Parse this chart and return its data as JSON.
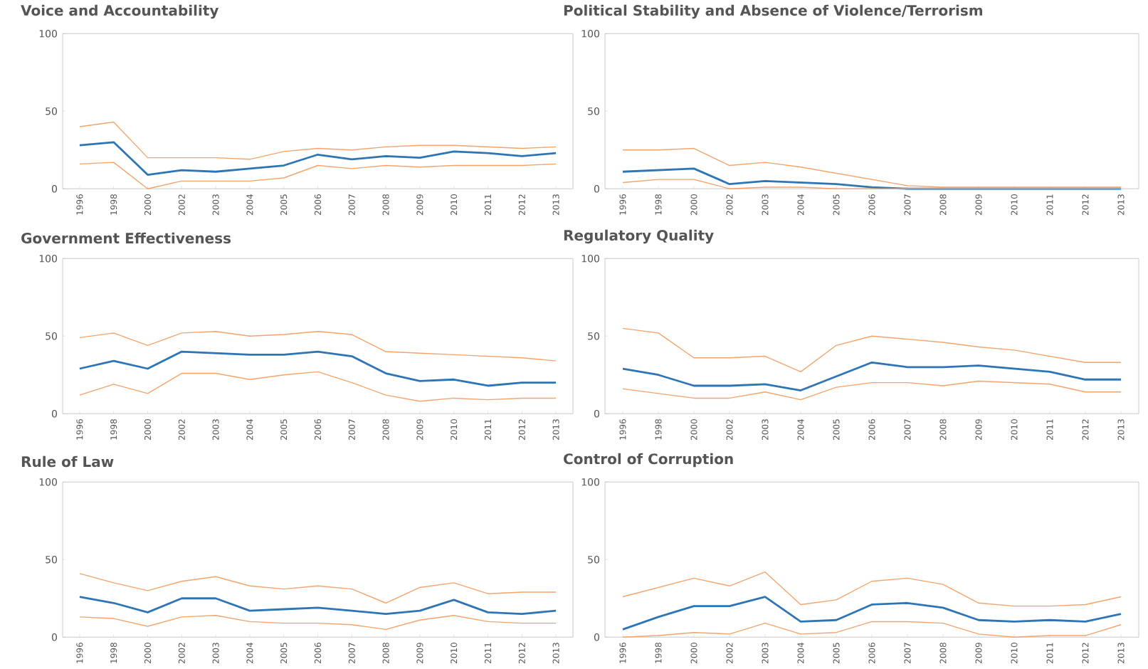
{
  "chart_data": [
    {
      "type": "line",
      "title": "Voice and Accountability",
      "categories": [
        "1996",
        "1998",
        "2000",
        "2002",
        "2003",
        "2004",
        "2005",
        "2006",
        "2007",
        "2008",
        "2009",
        "2010",
        "2011",
        "2012",
        "2013"
      ],
      "ylim": [
        0,
        100
      ],
      "yticks": [
        0,
        50,
        100
      ],
      "series": [
        {
          "color": "#2e75b6",
          "values": [
            28,
            30,
            9,
            12,
            11,
            13,
            15,
            22,
            19,
            21,
            20,
            24,
            23,
            21,
            23
          ]
        },
        {
          "color": "#f4a46a",
          "values": [
            40,
            43,
            20,
            20,
            20,
            19,
            24,
            26,
            25,
            27,
            28,
            28,
            27,
            26,
            27
          ]
        },
        {
          "color": "#f4a46a",
          "values": [
            16,
            17,
            0,
            5,
            5,
            5,
            7,
            15,
            13,
            15,
            14,
            15,
            15,
            15,
            16
          ]
        }
      ]
    },
    {
      "type": "line",
      "title": "Political Stability and Absence of Violence/Terrorism",
      "categories": [
        "1996",
        "1998",
        "2000",
        "2002",
        "2003",
        "2004",
        "2005",
        "2006",
        "2007",
        "2008",
        "2009",
        "2010",
        "2011",
        "2012",
        "2013"
      ],
      "ylim": [
        0,
        100
      ],
      "yticks": [
        0,
        50,
        100
      ],
      "series": [
        {
          "color": "#2e75b6",
          "values": [
            11,
            12,
            13,
            3,
            5,
            4,
            3,
            1,
            0,
            0,
            0,
            0,
            0,
            0,
            0
          ]
        },
        {
          "color": "#f4a46a",
          "values": [
            25,
            25,
            26,
            15,
            17,
            14,
            10,
            6,
            2,
            1,
            1,
            1,
            1,
            1,
            1
          ]
        },
        {
          "color": "#f4a46a",
          "values": [
            4,
            6,
            6,
            0,
            1,
            1,
            0,
            0,
            0,
            0,
            0,
            0,
            0,
            0,
            0
          ]
        }
      ]
    },
    {
      "type": "line",
      "title": "Government Effectiveness",
      "categories": [
        "1996",
        "1998",
        "2000",
        "2002",
        "2003",
        "2004",
        "2005",
        "2006",
        "2007",
        "2008",
        "2009",
        "2010",
        "2011",
        "2012",
        "2013"
      ],
      "ylim": [
        0,
        100
      ],
      "yticks": [
        0,
        50,
        100
      ],
      "series": [
        {
          "color": "#2e75b6",
          "values": [
            29,
            34,
            29,
            40,
            39,
            38,
            38,
            40,
            37,
            26,
            21,
            22,
            18,
            20,
            20
          ]
        },
        {
          "color": "#f4a46a",
          "values": [
            49,
            52,
            44,
            52,
            53,
            50,
            51,
            53,
            51,
            40,
            39,
            38,
            37,
            36,
            34
          ]
        },
        {
          "color": "#f4a46a",
          "values": [
            12,
            19,
            13,
            26,
            26,
            22,
            25,
            27,
            20,
            12,
            8,
            10,
            9,
            10,
            10
          ]
        }
      ]
    },
    {
      "type": "line",
      "title": "Regulatory Quality",
      "categories": [
        "1996",
        "1998",
        "2000",
        "2002",
        "2003",
        "2004",
        "2005",
        "2006",
        "2007",
        "2008",
        "2009",
        "2010",
        "2011",
        "2012",
        "2013"
      ],
      "ylim": [
        0,
        100
      ],
      "yticks": [
        0,
        50,
        100
      ],
      "series": [
        {
          "color": "#2e75b6",
          "values": [
            29,
            25,
            18,
            18,
            19,
            15,
            24,
            33,
            30,
            30,
            31,
            29,
            27,
            22,
            22
          ]
        },
        {
          "color": "#f4a46a",
          "values": [
            55,
            52,
            36,
            36,
            37,
            27,
            44,
            50,
            48,
            46,
            43,
            41,
            37,
            33,
            33
          ]
        },
        {
          "color": "#f4a46a",
          "values": [
            16,
            13,
            10,
            10,
            14,
            9,
            17,
            20,
            20,
            18,
            21,
            20,
            19,
            14,
            14
          ]
        }
      ]
    },
    {
      "type": "line",
      "title": "Rule of Law",
      "categories": [
        "1996",
        "1998",
        "2000",
        "2002",
        "2003",
        "2004",
        "2005",
        "2006",
        "2007",
        "2008",
        "2009",
        "2010",
        "2011",
        "2012",
        "2013"
      ],
      "ylim": [
        0,
        100
      ],
      "yticks": [
        0,
        50,
        100
      ],
      "series": [
        {
          "color": "#2e75b6",
          "values": [
            26,
            22,
            16,
            25,
            25,
            17,
            18,
            19,
            17,
            15,
            17,
            24,
            16,
            15,
            17
          ]
        },
        {
          "color": "#f4a46a",
          "values": [
            41,
            35,
            30,
            36,
            39,
            33,
            31,
            33,
            31,
            22,
            32,
            35,
            28,
            29,
            29
          ]
        },
        {
          "color": "#f4a46a",
          "values": [
            13,
            12,
            7,
            13,
            14,
            10,
            9,
            9,
            8,
            5,
            11,
            14,
            10,
            9,
            9
          ]
        }
      ]
    },
    {
      "type": "line",
      "title": "Control of Corruption",
      "categories": [
        "1996",
        "1998",
        "2000",
        "2002",
        "2003",
        "2004",
        "2005",
        "2006",
        "2007",
        "2008",
        "2009",
        "2010",
        "2011",
        "2012",
        "2013"
      ],
      "ylim": [
        0,
        100
      ],
      "yticks": [
        0,
        50,
        100
      ],
      "series": [
        {
          "color": "#2e75b6",
          "values": [
            5,
            13,
            20,
            20,
            26,
            10,
            11,
            21,
            22,
            19,
            11,
            10,
            11,
            10,
            15
          ]
        },
        {
          "color": "#f4a46a",
          "values": [
            26,
            32,
            38,
            33,
            42,
            21,
            24,
            36,
            38,
            34,
            22,
            20,
            20,
            21,
            26
          ]
        },
        {
          "color": "#f4a46a",
          "values": [
            0,
            1,
            3,
            2,
            9,
            2,
            3,
            10,
            10,
            9,
            2,
            0,
            1,
            1,
            8
          ]
        }
      ]
    }
  ]
}
